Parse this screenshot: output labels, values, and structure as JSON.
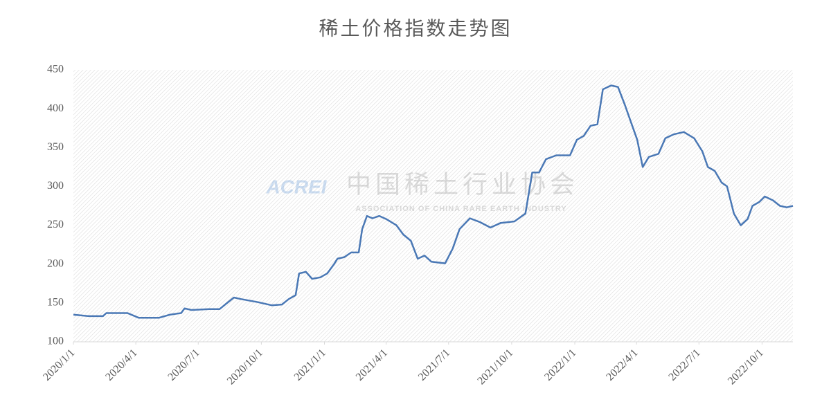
{
  "chart_data": {
    "type": "line",
    "title": "稀土价格指数走势图",
    "watermark": {
      "logo": "ACREI",
      "name": "中国稀土行业协会",
      "subtitle": "ASSOCIATION OF CHINA RARE EARTH INDUSTRY"
    },
    "x": [
      "2020/1/1",
      "2020/1/24",
      "2020/2/13",
      "2020/2/18",
      "2020/3/5",
      "2020/3/20",
      "2020/4/5",
      "2020/5/5",
      "2020/5/21",
      "2020/6/6",
      "2020/6/11",
      "2020/6/21",
      "2020/7/17",
      "2020/8/1",
      "2020/8/12",
      "2020/8/22",
      "2020/9/1",
      "2020/9/26",
      "2020/10/16",
      "2020/10/31",
      "2020/11/10",
      "2020/11/20",
      "2020/11/25",
      "2020/12/5",
      "2020/12/14",
      "2020/12/26",
      "2021/1/5",
      "2021/1/15",
      "2021/1/20",
      "2021/1/30",
      "2021/2/9",
      "2021/2/20",
      "2021/2/25",
      "2021/3/4",
      "2021/3/12",
      "2021/3/22",
      "2021/4/1",
      "2021/4/16",
      "2021/4/26",
      "2021/5/7",
      "2021/5/17",
      "2021/5/27",
      "2021/6/6",
      "2021/6/26",
      "2021/7/7",
      "2021/7/17",
      "2021/8/1",
      "2021/8/16",
      "2021/8/31",
      "2021/9/15",
      "2021/10/5",
      "2021/10/21",
      "2021/10/31",
      "2021/11/10",
      "2021/11/20",
      "2021/12/5",
      "2021/12/25",
      "2022/1/4",
      "2022/1/14",
      "2022/1/24",
      "2022/2/3",
      "2022/2/11",
      "2022/2/23",
      "2022/3/5",
      "2022/3/15",
      "2022/3/25",
      "2022/4/2",
      "2022/4/10",
      "2022/4/19",
      "2022/5/3",
      "2022/5/13",
      "2022/5/25",
      "2022/6/9",
      "2022/6/24",
      "2022/7/6",
      "2022/7/14",
      "2022/7/24",
      "2022/8/3",
      "2022/8/11",
      "2022/8/21",
      "2022/8/31",
      "2022/9/10",
      "2022/9/17",
      "2022/9/27",
      "2022/10/5",
      "2022/10/17",
      "2022/10/27",
      "2022/11/6",
      "2022/11/15"
    ],
    "series": [
      {
        "name": "稀土价格指数",
        "color": "#4a78b5",
        "values": [
          135,
          133,
          133,
          137,
          137,
          137,
          131,
          131,
          135,
          137,
          143,
          141,
          142,
          142,
          150,
          157,
          155,
          151,
          147,
          148,
          155,
          160,
          188,
          190,
          181,
          183,
          188,
          200,
          207,
          209,
          215,
          215,
          245,
          262,
          259,
          262,
          258,
          250,
          238,
          230,
          207,
          211,
          203,
          201,
          220,
          245,
          259,
          254,
          247,
          253,
          255,
          265,
          318,
          318,
          335,
          340,
          340,
          360,
          365,
          378,
          380,
          425,
          430,
          428,
          405,
          380,
          360,
          325,
          338,
          342,
          362,
          367,
          370,
          362,
          345,
          325,
          320,
          305,
          300,
          265,
          250,
          258,
          275,
          280,
          287,
          282,
          275,
          273,
          275
        ]
      }
    ],
    "xlim": [
      "2020/1/1",
      "2022/11/15"
    ],
    "xticks": [
      "2020/1/1",
      "2020/4/1",
      "2020/7/1",
      "2020/10/1",
      "2021/1/1",
      "2021/4/1",
      "2021/7/1",
      "2021/10/1",
      "2022/1/1",
      "2022/4/1",
      "2022/7/1",
      "2022/10/1"
    ],
    "ylim": [
      100,
      450
    ],
    "yticks": [
      100,
      150,
      200,
      250,
      300,
      350,
      400,
      450
    ]
  }
}
